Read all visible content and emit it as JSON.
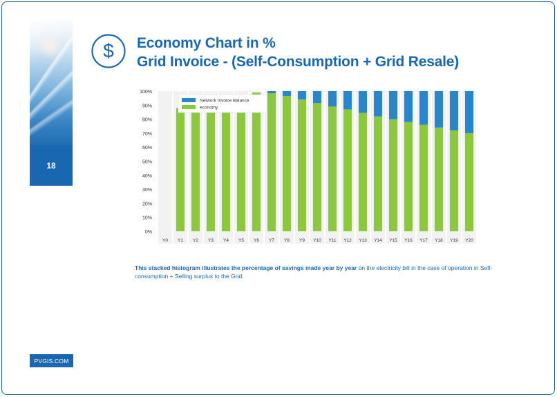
{
  "page": {
    "number": "18",
    "title_line1": "Economy Chart in %",
    "title_line2": "Grid Invoice - (Self-Consumption + Grid Resale)",
    "footer": "PVGIS.COM"
  },
  "caption": {
    "bold": "This stacked histogram illustrates the percentage of savings made year by year",
    "normal": " on the electricity bill in the case of operation in Self-consumption + Selling surplus to the Grid."
  },
  "colors": {
    "brand": "#1a67b1",
    "economy": "#8dc63f",
    "network": "#2b86c9",
    "band": "#f2f2f2"
  },
  "chart_data": {
    "type": "bar",
    "stacked": true,
    "categories": [
      "Y0",
      "Y1",
      "Y2",
      "Y3",
      "Y4",
      "Y5",
      "Y6",
      "Y7",
      "Y8",
      "Y9",
      "Y10",
      "Y11",
      "Y12",
      "Y13",
      "Y14",
      "Y15",
      "Y16",
      "Y17",
      "Y18",
      "Y19",
      "Y20"
    ],
    "series": [
      {
        "name": "economy",
        "color": "#8dc63f",
        "values": [
          0,
          88,
          88,
          88,
          88,
          88,
          99,
          98.5,
          96.5,
          94,
          91.5,
          89,
          87,
          84.5,
          82,
          80,
          78,
          76,
          74,
          72,
          70
        ]
      },
      {
        "name": "Network Invoice Balance",
        "color": "#2b86c9",
        "values": [
          0,
          0,
          0,
          0,
          0,
          0,
          0,
          1.5,
          3.5,
          6,
          8.5,
          11,
          13,
          15.5,
          18,
          20,
          22,
          24,
          26,
          28,
          30
        ]
      }
    ],
    "yticks": [
      "0%",
      "10%",
      "20%",
      "30%",
      "40%",
      "50%",
      "60%",
      "70%",
      "80%",
      "90%",
      "100%"
    ],
    "ylim": [
      0,
      100
    ],
    "legend": [
      "Network Invoice Balance",
      "economy"
    ],
    "legend_position": "top-left",
    "title": "",
    "xlabel": "",
    "ylabel": ""
  }
}
